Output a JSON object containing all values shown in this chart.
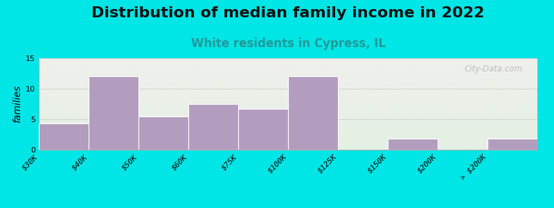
{
  "title": "Distribution of median family income in 2022",
  "subtitle": "White residents in Cypress, IL",
  "ylabel": "families",
  "bin_edges": [
    0,
    1,
    2,
    3,
    4,
    5,
    6,
    7,
    8,
    9,
    10
  ],
  "tick_positions": [
    0,
    1,
    2,
    3,
    4,
    5,
    6,
    7,
    8,
    9,
    10
  ],
  "tick_labels": [
    "$30K",
    "$40K",
    "$50K",
    "$60K",
    "$75K",
    "$100K",
    "$125K",
    "$150K",
    "$200K",
    "",
    "> $200K"
  ],
  "values": [
    4.3,
    12,
    5.5,
    7.5,
    6.7,
    12,
    0,
    1.8,
    0,
    1.8
  ],
  "bar_color": "#b39dbe",
  "bar_edge_color": "#ffffff",
  "ylim": [
    0,
    15
  ],
  "yticks": [
    0,
    5,
    10,
    15
  ],
  "background_outer": "#00e5e5",
  "grad_top_color": "#f0f0ec",
  "grad_bottom_color": "#e4f0e4",
  "title_fontsize": 16,
  "subtitle_fontsize": 12,
  "subtitle_color": "#229999",
  "ylabel_fontsize": 10,
  "tick_fontsize": 8,
  "watermark": "City-Data.com",
  "watermark_color": "#b0b8b0"
}
